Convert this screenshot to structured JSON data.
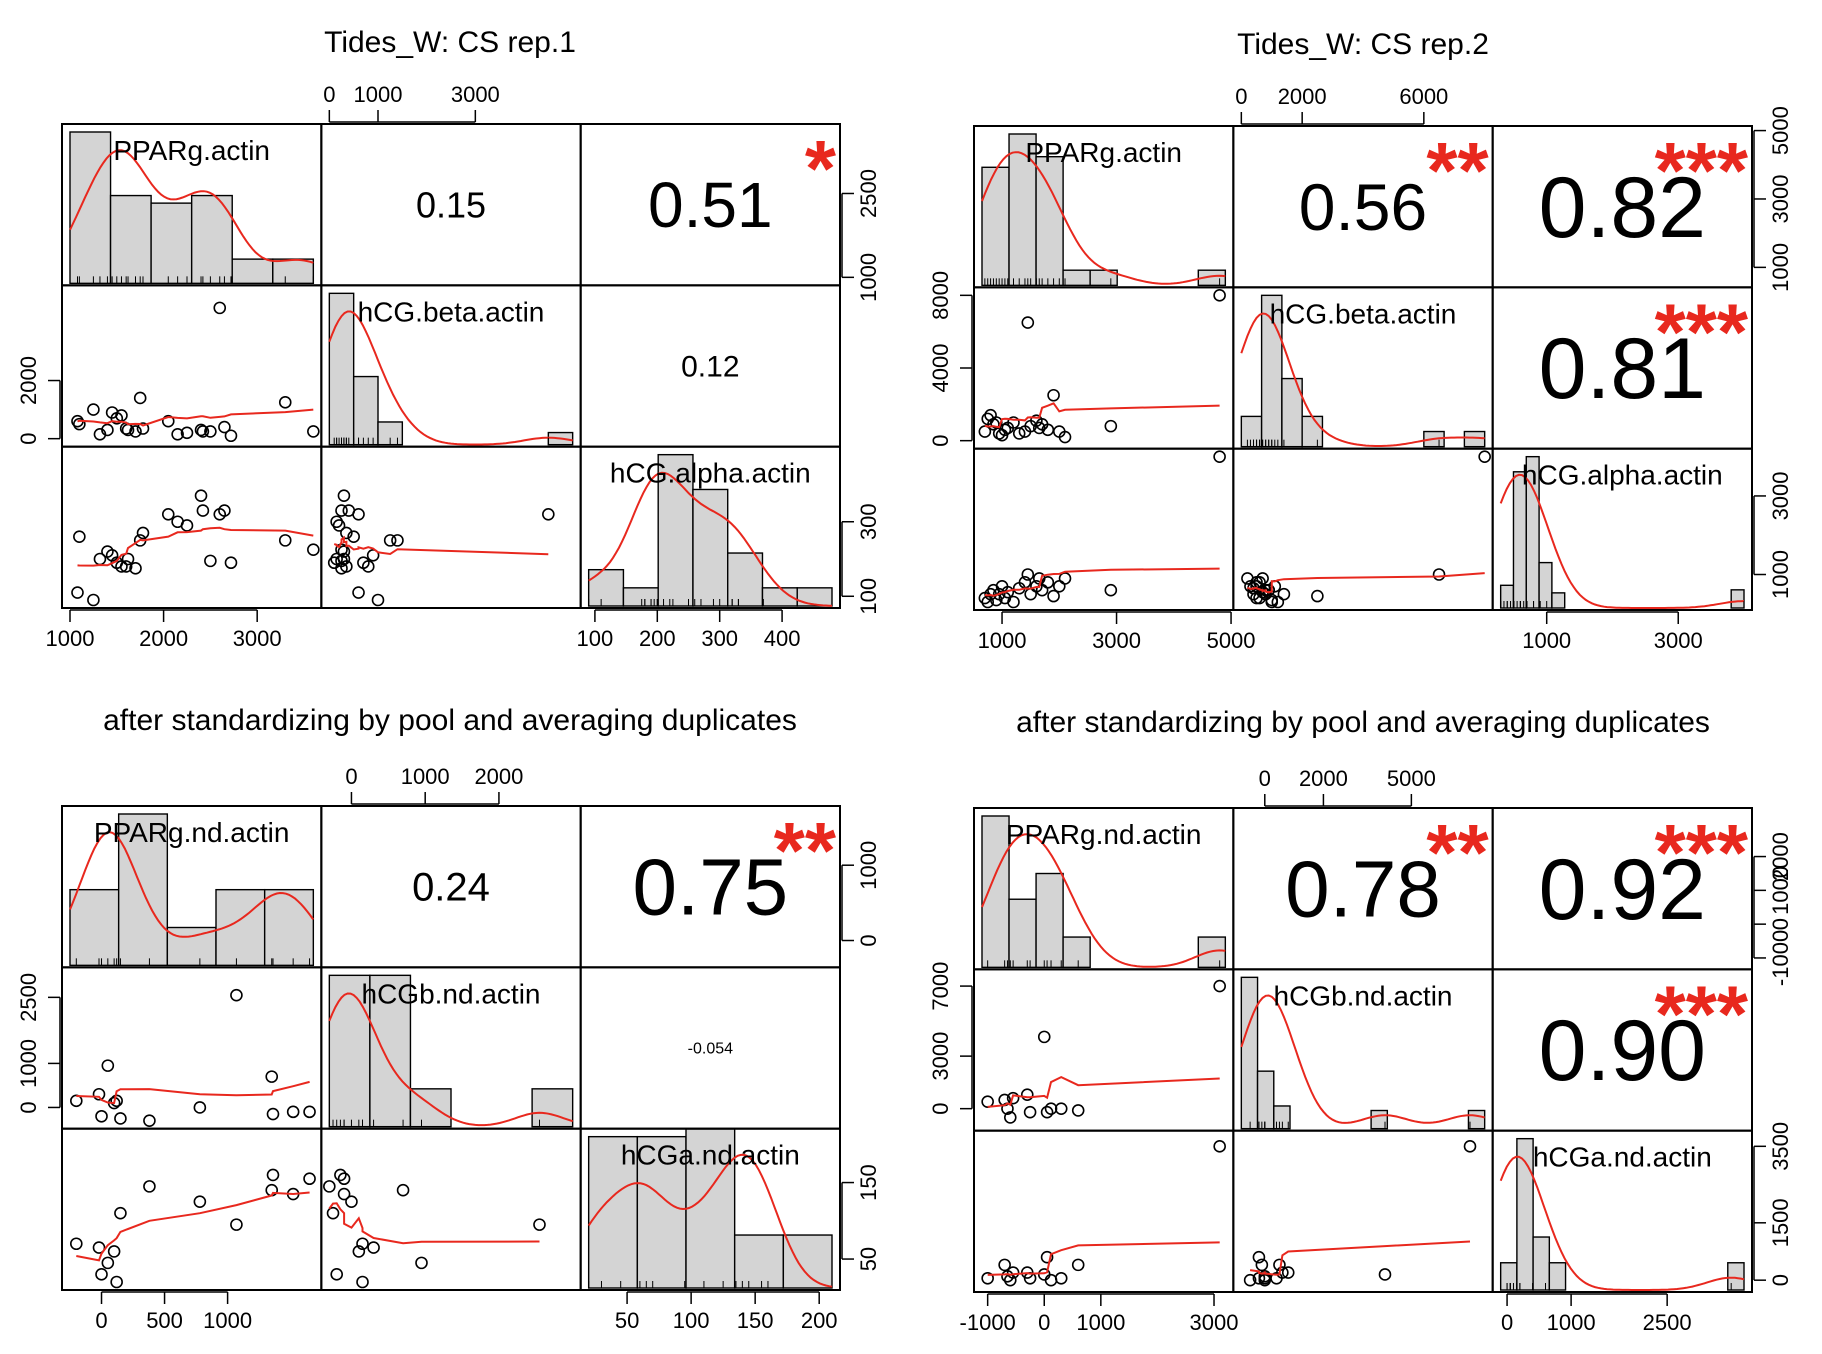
{
  "chart_data": [
    {
      "type": "scatter-matrix",
      "title": "Tides_W: CS rep.1",
      "variables": [
        "PPARg.actin",
        "hCG.beta.actin",
        "hCG.alpha.actin"
      ],
      "ranges": [
        [
          1000,
          3600
        ],
        [
          0,
          5000
        ],
        [
          90,
          480
        ]
      ],
      "top_ticks": [
        "0",
        "1000",
        "3000"
      ],
      "top_tick_values": [
        0,
        1000,
        3000
      ],
      "right_ticks": [
        "1000",
        "2500"
      ],
      "right_tick_values": [
        1000,
        2500
      ],
      "left_ticks": [
        "0",
        "2000"
      ],
      "left_tick_values": [
        0,
        2000
      ],
      "bottom_ticks_col0": [
        "1000",
        "2000",
        "3000"
      ],
      "bottom_tick_values_col0": [
        1000,
        2000,
        3000
      ],
      "bottom_ticks_col2": [
        "100",
        "200",
        "300",
        "400"
      ],
      "bottom_tick_values_col2": [
        100,
        200,
        300,
        400
      ],
      "right_ticks_row2": [
        "100",
        "300"
      ],
      "right_tick_values_row2": [
        100,
        300
      ],
      "correlations": [
        {
          "i": 0,
          "j": 1,
          "label": "0.15",
          "stars": "",
          "size": 36
        },
        {
          "i": 0,
          "j": 2,
          "label": "0.51",
          "stars": "*",
          "size": 64
        },
        {
          "i": 1,
          "j": 2,
          "label": "0.12",
          "stars": "",
          "size": 30
        }
      ],
      "hist": [
        [
          1,
          0.58,
          0.53,
          0.58,
          0.16,
          0.16
        ],
        [
          1,
          0.45,
          0.15,
          0,
          0,
          0,
          0,
          0,
          0,
          0.08
        ],
        [
          0.24,
          0.12,
          1,
          0.77,
          0.35,
          0.12,
          0.12
        ]
      ],
      "samples": {
        "x": [
          1080,
          1100,
          1250,
          1320,
          1400,
          1450,
          1500,
          1550,
          1600,
          1620,
          1700,
          1750,
          1780,
          2050,
          2150,
          2250,
          2400,
          2420,
          2500,
          2600,
          2650,
          2720,
          3300,
          3600
        ],
        "y": [
          600,
          500,
          1000,
          150,
          300,
          900,
          700,
          800,
          350,
          300,
          250,
          1400,
          350,
          600,
          150,
          200,
          300,
          250,
          250,
          4500,
          400,
          100,
          1250,
          250
        ],
        "z": [
          110,
          260,
          90,
          200,
          220,
          210,
          190,
          180,
          180,
          200,
          175,
          250,
          270,
          320,
          300,
          290,
          370,
          330,
          195,
          320,
          330,
          190,
          250,
          225
        ]
      }
    },
    {
      "type": "scatter-matrix",
      "title": "Tides_W: CS rep.2",
      "variables": [
        "PPARg.actin",
        "hCG.beta.actin",
        "hCG.alpha.actin"
      ],
      "ranges": [
        [
          650,
          4900
        ],
        [
          0,
          8000
        ],
        [
          300,
          4000
        ]
      ],
      "top_ticks": [
        "0",
        "2000",
        "6000"
      ],
      "top_tick_values": [
        0,
        2000,
        6000
      ],
      "right_ticks": [
        "1000",
        "3000",
        "5000"
      ],
      "right_tick_values": [
        1000,
        3000,
        5000
      ],
      "left_ticks": [
        "0",
        "4000",
        "8000"
      ],
      "left_tick_values": [
        0,
        4000,
        8000
      ],
      "bottom_ticks_col0": [
        "1000",
        "3000",
        "5000"
      ],
      "bottom_tick_values_col0": [
        1000,
        3000,
        5000
      ],
      "bottom_ticks_col2": [
        "1000",
        "3000"
      ],
      "bottom_tick_values_col2": [
        1000,
        3000
      ],
      "right_ticks_row2": [
        "1000",
        "3000"
      ],
      "right_tick_values_row2": [
        1000,
        3000
      ],
      "correlations": [
        {
          "i": 0,
          "j": 1,
          "label": "0.56",
          "stars": "**",
          "size": 66
        },
        {
          "i": 0,
          "j": 2,
          "label": "0.82",
          "stars": "***",
          "size": 86
        },
        {
          "i": 1,
          "j": 2,
          "label": "0.81",
          "stars": "***",
          "size": 86
        }
      ],
      "hist": [
        [
          0.78,
          1,
          0.85,
          0.1,
          0.1,
          0,
          0,
          0,
          0.1
        ],
        [
          0.2,
          1,
          0.45,
          0.2,
          0,
          0,
          0,
          0,
          0,
          0.1,
          0,
          0.1
        ],
        [
          0.15,
          0.9,
          1,
          0.3,
          0.1,
          0,
          0,
          0,
          0,
          0,
          0,
          0,
          0,
          0,
          0,
          0,
          0,
          0,
          0.12
        ]
      ],
      "samples": {
        "x": [
          700,
          750,
          800,
          850,
          900,
          950,
          1000,
          1050,
          1100,
          1200,
          1300,
          1400,
          1450,
          1500,
          1600,
          1650,
          1700,
          1800,
          1900,
          2000,
          2100,
          2900,
          4800
        ],
        "y": [
          500,
          1200,
          1400,
          900,
          1000,
          400,
          300,
          600,
          700,
          1000,
          400,
          500,
          6500,
          800,
          1100,
          700,
          900,
          600,
          2500,
          500,
          200,
          800,
          8000
        ],
        "z": [
          400,
          300,
          500,
          600,
          350,
          500,
          700,
          400,
          550,
          300,
          650,
          800,
          1000,
          500,
          700,
          900,
          600,
          800,
          450,
          700,
          900,
          600,
          4000
        ]
      }
    },
    {
      "type": "scatter-matrix",
      "title": "after standardizing by pool and averaging duplicates",
      "variables": [
        "PPARg.nd.actin",
        "hCGb.nd.actin",
        "hCGa.nd.actin"
      ],
      "ranges": [
        [
          -250,
          1680
        ],
        [
          -300,
          3000
        ],
        [
          20,
          210
        ]
      ],
      "top_ticks": [
        "0",
        "1000",
        "2000"
      ],
      "top_tick_values": [
        0,
        1000,
        2000
      ],
      "right_ticks": [
        "0",
        "1000"
      ],
      "right_tick_values": [
        0,
        1000
      ],
      "left_ticks": [
        "0",
        "1000",
        "2500"
      ],
      "left_tick_values": [
        0,
        1000,
        2500
      ],
      "bottom_ticks_col0": [
        "0",
        "500",
        "1000"
      ],
      "bottom_tick_values_col0": [
        0,
        500,
        1000
      ],
      "bottom_ticks_col2": [
        "50",
        "100",
        "150",
        "200"
      ],
      "bottom_tick_values_col2": [
        50,
        100,
        150,
        200
      ],
      "right_ticks_row2": [
        "50",
        "150"
      ],
      "right_tick_values_row2": [
        50,
        150
      ],
      "correlations": [
        {
          "i": 0,
          "j": 1,
          "label": "0.24",
          "stars": "",
          "size": 40
        },
        {
          "i": 0,
          "j": 2,
          "label": "0.75",
          "stars": "**",
          "size": 80
        },
        {
          "i": 1,
          "j": 2,
          "label": "-0.054",
          "stars": "",
          "size": 16
        }
      ],
      "hist": [
        [
          0.5,
          1,
          0.25,
          0.5,
          0.5
        ],
        [
          1,
          1,
          0.25,
          0,
          0,
          0.25
        ],
        [
          1,
          1,
          1.05,
          0.35,
          0.35
        ]
      ],
      "samples": {
        "x": [
          -200,
          -20,
          0,
          50,
          100,
          120,
          150,
          380,
          780,
          1070,
          1350,
          1360,
          1520,
          1650
        ],
        "y": [
          150,
          300,
          -200,
          950,
          100,
          150,
          -250,
          -300,
          0,
          2550,
          700,
          -150,
          -100,
          -100
        ],
        "z": [
          70,
          65,
          30,
          45,
          60,
          20,
          110,
          145,
          125,
          95,
          140,
          160,
          135,
          155
        ]
      }
    },
    {
      "type": "scatter-matrix",
      "title": "after standardizing by pool and averaging duplicates",
      "variables": [
        "PPARg.nd.actin",
        "hCGb.nd.actin",
        "hCGa.nd.actin"
      ],
      "ranges": [
        [
          -1100,
          3200
        ],
        [
          -800,
          7500
        ],
        [
          -100,
          3700
        ]
      ],
      "top_ticks": [
        "0",
        "2000",
        "5000"
      ],
      "top_tick_values": [
        0,
        2000,
        5000
      ],
      "right_ticks": [
        "-1000",
        "0",
        "1000",
        "2000"
      ],
      "right_tick_values": [
        -1000,
        0,
        1000,
        2000
      ],
      "left_ticks": [
        "0",
        "3000",
        "7000"
      ],
      "left_tick_values": [
        0,
        3000,
        7000
      ],
      "bottom_ticks_col0": [
        "-1000",
        "0",
        "1000",
        "3000"
      ],
      "bottom_tick_values_col0": [
        -1000,
        0,
        1000,
        3000
      ],
      "bottom_ticks_col2": [
        "0",
        "1000",
        "2500"
      ],
      "bottom_tick_values_col2": [
        0,
        1000,
        2500
      ],
      "right_ticks_row2": [
        "0",
        "1500",
        "3500"
      ],
      "right_tick_values_row2": [
        0,
        1500,
        3500
      ],
      "correlations": [
        {
          "i": 0,
          "j": 1,
          "label": "0.78",
          "stars": "**",
          "size": 80
        },
        {
          "i": 0,
          "j": 2,
          "label": "0.92",
          "stars": "***",
          "size": 86
        },
        {
          "i": 1,
          "j": 2,
          "label": "0.90",
          "stars": "***",
          "size": 86
        }
      ],
      "hist": [
        [
          1,
          0.45,
          0.62,
          0.2,
          0,
          0,
          0,
          0,
          0.2
        ],
        [
          1,
          0.38,
          0.15,
          0,
          0,
          0,
          0,
          0,
          0.12,
          0,
          0,
          0,
          0,
          0,
          0.12
        ],
        [
          0.18,
          1,
          0.35,
          0.18,
          0,
          0,
          0,
          0,
          0,
          0,
          0,
          0,
          0,
          0,
          0.18
        ]
      ],
      "samples": {
        "x": [
          -1000,
          -700,
          -650,
          -600,
          -550,
          -300,
          -250,
          0,
          50,
          120,
          300,
          600,
          3100
        ],
        "y": [
          400,
          500,
          0,
          -500,
          600,
          800,
          -200,
          4100,
          -200,
          0,
          0,
          -100,
          7000
        ],
        "z": [
          50,
          400,
          100,
          0,
          200,
          200,
          50,
          150,
          600,
          0,
          50,
          400,
          3500
        ]
      }
    }
  ]
}
